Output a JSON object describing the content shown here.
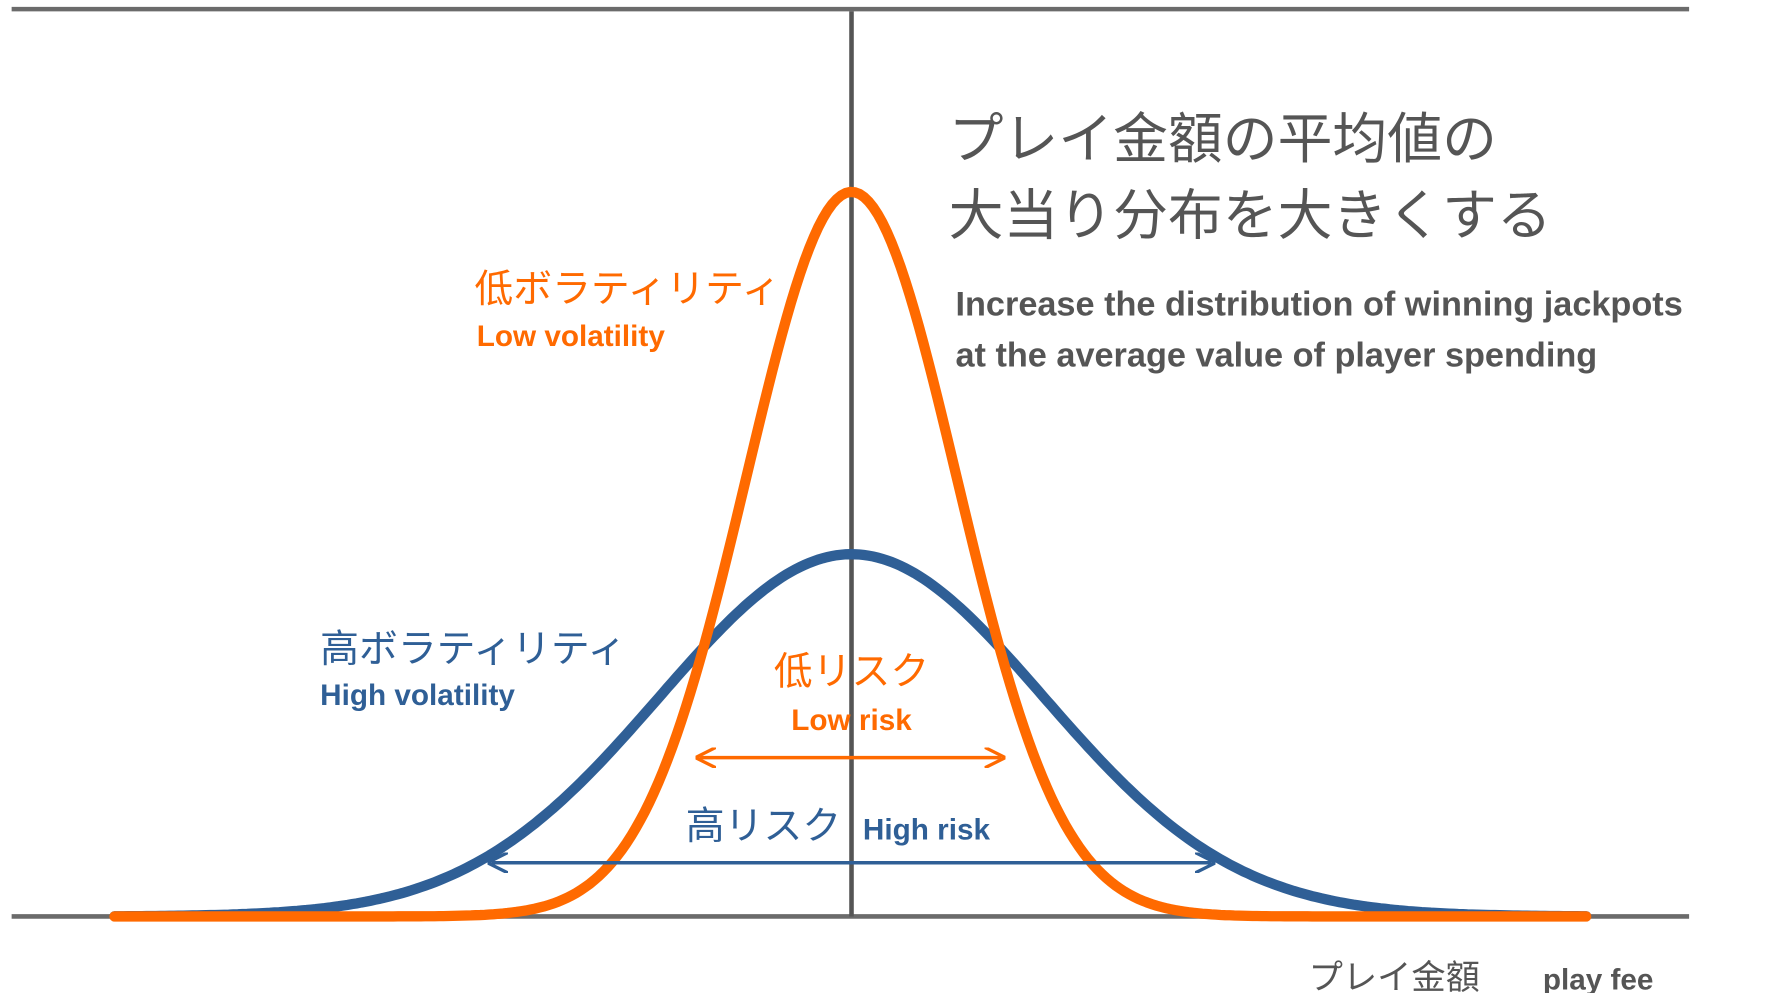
{
  "title_lines": [
    "プレイ金額の平均値の",
    "大当り分布を大きくする"
  ],
  "subtitle_lines": [
    "Increase the distribution of winning jackpots",
    "at the average value of player spending"
  ],
  "low_volatility": {
    "label_ja": "低ボラティリティ",
    "label_en": "Low volatility"
  },
  "high_volatility": {
    "label_ja": "高ボラティリティ",
    "label_en": "High volatility"
  },
  "low_risk": {
    "label_ja": "低リスク",
    "label_en": "Low risk"
  },
  "high_risk": {
    "label_ja": "高リスク",
    "label_en": "High risk"
  },
  "x_axis": {
    "label_ja": "プレイ金額",
    "label_en": "play fee"
  }
}
